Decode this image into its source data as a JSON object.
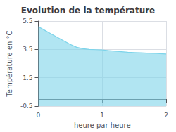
{
  "chart_data": {
    "type": "area",
    "title": "Evolution de la température",
    "xlabel": "heure par heure",
    "ylabel": "Température en °C",
    "x": [
      0.0,
      0.1,
      0.2,
      0.3,
      0.4,
      0.5,
      0.6,
      0.7,
      0.8,
      0.9,
      1.0,
      1.1,
      1.2,
      1.3,
      1.4,
      1.5,
      1.6,
      1.7,
      1.8,
      1.9,
      2.0
    ],
    "values": [
      5.1,
      4.85,
      4.6,
      4.35,
      4.1,
      3.85,
      3.65,
      3.55,
      3.5,
      3.48,
      3.46,
      3.42,
      3.38,
      3.34,
      3.3,
      3.28,
      3.26,
      3.24,
      3.22,
      3.2,
      3.18
    ],
    "color": "#7dd4ea",
    "xlim": [
      0,
      2
    ],
    "ylim": [
      -0.5,
      5.5
    ],
    "xticks": [
      0,
      1,
      2
    ],
    "yticks": [
      -0.5,
      1.5,
      3.5,
      5.5
    ],
    "grid": true
  }
}
